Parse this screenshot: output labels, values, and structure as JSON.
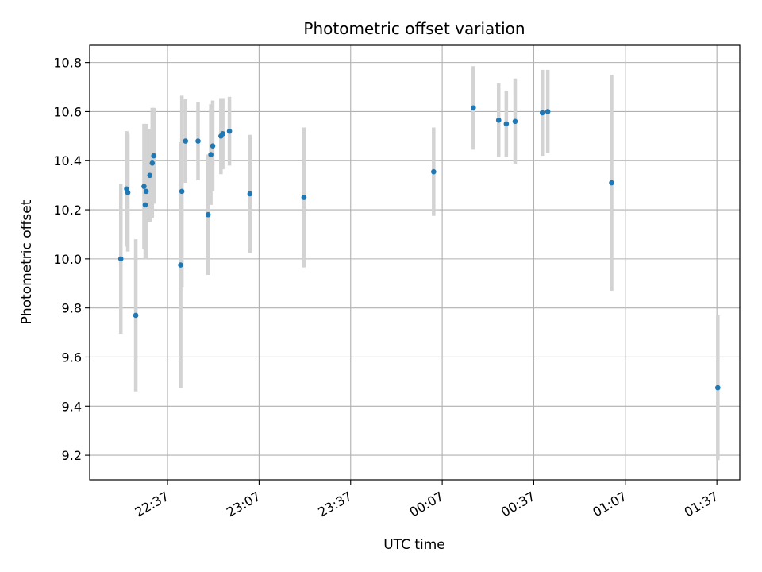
{
  "chart_data": {
    "type": "scatter",
    "title": "Photometric offset variation",
    "xlabel": "UTC time",
    "ylabel": "Photometric offset",
    "x_ticks": [
      "22:37",
      "23:07",
      "23:37",
      "00:07",
      "00:37",
      "01:07",
      "01:37"
    ],
    "x_tick_minutes": [
      0,
      30,
      60,
      90,
      120,
      150,
      180
    ],
    "xlim_minutes": [
      -25.5,
      187.5
    ],
    "y_ticks": [
      "9.2",
      "9.4",
      "9.6",
      "9.8",
      "10.0",
      "10.2",
      "10.4",
      "10.6",
      "10.8"
    ],
    "ylim": [
      9.1,
      10.87
    ],
    "grid": true,
    "colors": {
      "point": "#1f77b4",
      "errorbar": "#d3d3d3",
      "grid": "#b0b0b0",
      "axes": "#000000"
    },
    "series": [
      {
        "points": [
          {
            "t": -15.3,
            "y": 10.0,
            "err": 0.305
          },
          {
            "t": -13.4,
            "y": 10.285,
            "err": 0.235
          },
          {
            "t": -13.0,
            "y": 10.27,
            "err": 0.24
          },
          {
            "t": -10.4,
            "y": 9.77,
            "err": 0.31
          },
          {
            "t": -7.7,
            "y": 10.295,
            "err": 0.255
          },
          {
            "t": -7.3,
            "y": 10.22,
            "err": 0.22
          },
          {
            "t": -7.0,
            "y": 10.275,
            "err": 0.275
          },
          {
            "t": -5.8,
            "y": 10.34,
            "err": 0.19
          },
          {
            "t": -5.0,
            "y": 10.39,
            "err": 0.225
          },
          {
            "t": -4.5,
            "y": 10.42,
            "err": 0.195
          },
          {
            "t": 4.3,
            "y": 9.975,
            "err": 0.5
          },
          {
            "t": 4.7,
            "y": 10.275,
            "err": 0.39
          },
          {
            "t": 5.9,
            "y": 10.48,
            "err": 0.17
          },
          {
            "t": 10.0,
            "y": 10.48,
            "err": 0.16
          },
          {
            "t": 13.3,
            "y": 10.18,
            "err": 0.245
          },
          {
            "t": 14.2,
            "y": 10.425,
            "err": 0.205
          },
          {
            "t": 14.8,
            "y": 10.46,
            "err": 0.185
          },
          {
            "t": 17.5,
            "y": 10.5,
            "err": 0.155
          },
          {
            "t": 18.1,
            "y": 10.51,
            "err": 0.145
          },
          {
            "t": 20.3,
            "y": 10.52,
            "err": 0.14
          },
          {
            "t": 27.0,
            "y": 10.265,
            "err": 0.24
          },
          {
            "t": 44.7,
            "y": 10.25,
            "err": 0.285
          },
          {
            "t": 87.2,
            "y": 10.355,
            "err": 0.18
          },
          {
            "t": 100.2,
            "y": 10.615,
            "err": 0.17
          },
          {
            "t": 108.5,
            "y": 10.565,
            "err": 0.15
          },
          {
            "t": 111.0,
            "y": 10.55,
            "err": 0.135
          },
          {
            "t": 113.9,
            "y": 10.56,
            "err": 0.175
          },
          {
            "t": 122.8,
            "y": 10.595,
            "err": 0.175
          },
          {
            "t": 124.6,
            "y": 10.6,
            "err": 0.17
          },
          {
            "t": 145.5,
            "y": 10.31,
            "err": 0.44
          },
          {
            "t": 180.3,
            "y": 9.475,
            "err": 0.295
          }
        ]
      }
    ]
  }
}
